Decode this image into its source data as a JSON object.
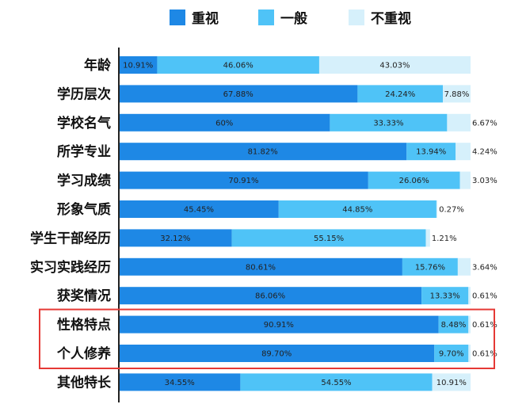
{
  "chart_data": {
    "type": "bar",
    "stacked": true,
    "orientation": "horizontal",
    "categories": [
      "年龄",
      "学历层次",
      "学校名气",
      "所学专业",
      "学习成绩",
      "形象气质",
      "学生干部经历",
      "实习实践经历",
      "获奖情况",
      "性格特点",
      "个人修养",
      "其他特长"
    ],
    "series": [
      {
        "name": "重视",
        "values": [
          10.91,
          67.88,
          60,
          81.82,
          70.91,
          45.45,
          32.12,
          80.61,
          86.06,
          90.91,
          89.7,
          34.55
        ],
        "labels": [
          "10.91%",
          "67.88%",
          "60%",
          "81.82%",
          "70.91%",
          "45.45%",
          "32.12%",
          "80.61%",
          "86.06%",
          "90.91%",
          "89.70%",
          "34.55%"
        ]
      },
      {
        "name": "一般",
        "values": [
          46.06,
          24.24,
          33.33,
          13.94,
          26.06,
          44.85,
          55.15,
          15.76,
          13.33,
          8.48,
          9.7,
          54.55
        ],
        "labels": [
          "46.06%",
          "24.24%",
          "33.33%",
          "13.94%",
          "26.06%",
          "44.85%",
          "55.15%",
          "15.76%",
          "13.33%",
          "8.48%",
          "9.70%",
          "54.55%"
        ]
      },
      {
        "name": "不重视",
        "values": [
          43.03,
          7.88,
          6.67,
          4.24,
          3.03,
          0.27,
          1.21,
          3.64,
          0.61,
          0.61,
          0.61,
          10.91
        ],
        "labels": [
          "43.03%",
          "7.88%",
          "6.67%",
          "4.24%",
          "3.03%",
          "0.27%",
          "1.21%",
          "3.64%",
          "0.61%",
          "0.61%",
          "0.61%",
          "10.91%"
        ]
      }
    ],
    "xlim": [
      0,
      100
    ],
    "legend": "top",
    "highlighted_categories": [
      "性格特点",
      "个人修养"
    ],
    "colors": {
      "重视": "#1E88E5",
      "一般": "#4FC3F7",
      "不重视": "#D6F0FB",
      "highlight_box": "#E53935",
      "axis": "#222222"
    }
  }
}
